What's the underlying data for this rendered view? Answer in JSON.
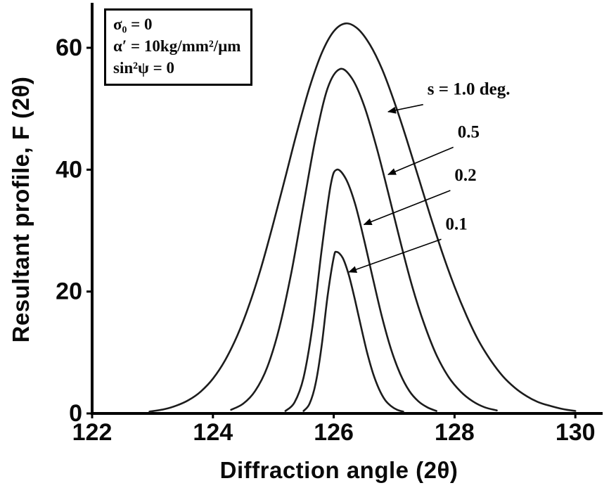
{
  "figure": {
    "background": "#ffffff",
    "axis_color": "#000000",
    "curve_color": "#1c1c1c",
    "text_color": "#0a0a0a"
  },
  "chart_data": {
    "type": "line",
    "title": "",
    "xlabel": "Diffraction angle (2θ)",
    "ylabel": "Resultant profile, F (2θ)",
    "xlim": [
      122,
      130.4
    ],
    "ylim": [
      0,
      66.5
    ],
    "x_ticks": [
      122,
      124,
      126,
      128,
      130
    ],
    "y_ticks": [
      0,
      20,
      40,
      60
    ],
    "grid": false,
    "legend_position": "none",
    "annotation_box": {
      "lines": [
        "σ₀ = 0",
        "α′ = 10kg/mm²/μm",
        "sin²ψ = 0"
      ]
    },
    "series": [
      {
        "name": "s = 1.0 deg.",
        "s_deg": 1.0,
        "peak_x": 126.2,
        "peak_y": 64,
        "points": [
          [
            122.95,
            0.3
          ],
          [
            123.2,
            0.7
          ],
          [
            123.4,
            1.3
          ],
          [
            123.6,
            2.2
          ],
          [
            123.8,
            3.6
          ],
          [
            124.0,
            5.7
          ],
          [
            124.2,
            8.7
          ],
          [
            124.4,
            12.7
          ],
          [
            124.6,
            17.8
          ],
          [
            124.8,
            24.0
          ],
          [
            125.0,
            31.2
          ],
          [
            125.2,
            38.8
          ],
          [
            125.4,
            46.5
          ],
          [
            125.6,
            53.5
          ],
          [
            125.8,
            59.1
          ],
          [
            126.0,
            62.7
          ],
          [
            126.2,
            64.0
          ],
          [
            126.4,
            63.1
          ],
          [
            126.6,
            60.5
          ],
          [
            126.8,
            56.5
          ],
          [
            127.0,
            51.2
          ],
          [
            127.2,
            45.2
          ],
          [
            127.4,
            38.8
          ],
          [
            127.6,
            32.4
          ],
          [
            127.8,
            26.3
          ],
          [
            128.0,
            20.8
          ],
          [
            128.2,
            16.0
          ],
          [
            128.4,
            11.9
          ],
          [
            128.6,
            8.7
          ],
          [
            128.8,
            6.1
          ],
          [
            129.0,
            4.2
          ],
          [
            129.2,
            2.8
          ],
          [
            129.4,
            1.8
          ],
          [
            129.6,
            1.2
          ],
          [
            129.8,
            0.7
          ],
          [
            130.0,
            0.4
          ]
        ]
      },
      {
        "name": "s = 0.5 deg.",
        "s_deg": 0.5,
        "peak_x": 126.1,
        "peak_y": 56.5,
        "points": [
          [
            124.3,
            0.6
          ],
          [
            124.5,
            1.6
          ],
          [
            124.7,
            3.7
          ],
          [
            124.9,
            7.6
          ],
          [
            125.1,
            14.1
          ],
          [
            125.3,
            23.2
          ],
          [
            125.5,
            34.3
          ],
          [
            125.7,
            45.2
          ],
          [
            125.9,
            53.4
          ],
          [
            126.1,
            56.5
          ],
          [
            126.3,
            55.0
          ],
          [
            126.5,
            50.6
          ],
          [
            126.7,
            44.0
          ],
          [
            126.9,
            36.3
          ],
          [
            127.1,
            28.3
          ],
          [
            127.3,
            20.8
          ],
          [
            127.5,
            14.6
          ],
          [
            127.7,
            9.6
          ],
          [
            127.9,
            6.0
          ],
          [
            128.1,
            3.6
          ],
          [
            128.3,
            2.0
          ],
          [
            128.5,
            1.0
          ],
          [
            128.7,
            0.5
          ]
        ]
      },
      {
        "name": "s = 0.2 deg.",
        "s_deg": 0.2,
        "peak_x": 126.05,
        "peak_y": 40,
        "points": [
          [
            125.2,
            0.4
          ],
          [
            125.35,
            1.8
          ],
          [
            125.5,
            5.9
          ],
          [
            125.65,
            14.4
          ],
          [
            125.8,
            26.8
          ],
          [
            125.95,
            37.5
          ],
          [
            126.05,
            40.0
          ],
          [
            126.2,
            38.5
          ],
          [
            126.35,
            34.5
          ],
          [
            126.5,
            28.6
          ],
          [
            126.65,
            22.1
          ],
          [
            126.8,
            15.8
          ],
          [
            126.95,
            10.5
          ],
          [
            127.1,
            6.5
          ],
          [
            127.25,
            3.7
          ],
          [
            127.4,
            2.0
          ],
          [
            127.55,
            1.0
          ],
          [
            127.7,
            0.4
          ]
        ]
      },
      {
        "name": "s = 0.1 deg.",
        "s_deg": 0.1,
        "peak_x": 126.05,
        "peak_y": 26.5,
        "points": [
          [
            125.5,
            0.4
          ],
          [
            125.6,
            1.6
          ],
          [
            125.7,
            4.9
          ],
          [
            125.8,
            11.1
          ],
          [
            125.9,
            19.4
          ],
          [
            126.0,
            25.6
          ],
          [
            126.05,
            26.5
          ],
          [
            126.15,
            25.5
          ],
          [
            126.25,
            22.7
          ],
          [
            126.35,
            18.7
          ],
          [
            126.45,
            14.3
          ],
          [
            126.55,
            10.1
          ],
          [
            126.65,
            6.6
          ],
          [
            126.75,
            4.0
          ],
          [
            126.85,
            2.2
          ],
          [
            126.95,
            1.2
          ],
          [
            127.05,
            0.6
          ],
          [
            127.15,
            0.3
          ]
        ]
      }
    ],
    "curve_labels": [
      {
        "text": "s = 1.0 deg.",
        "x": 127.55,
        "y": 52.3,
        "arrow_to": [
          126.9,
          49.5
        ]
      },
      {
        "text": "0.5",
        "x": 128.05,
        "y": 45.3,
        "arrow_to": [
          126.9,
          39.2
        ]
      },
      {
        "text": "0.2",
        "x": 128.0,
        "y": 38.2,
        "arrow_to": [
          126.5,
          31.0
        ]
      },
      {
        "text": "0.1",
        "x": 127.85,
        "y": 30.2,
        "arrow_to": [
          126.25,
          23.2
        ]
      }
    ]
  }
}
